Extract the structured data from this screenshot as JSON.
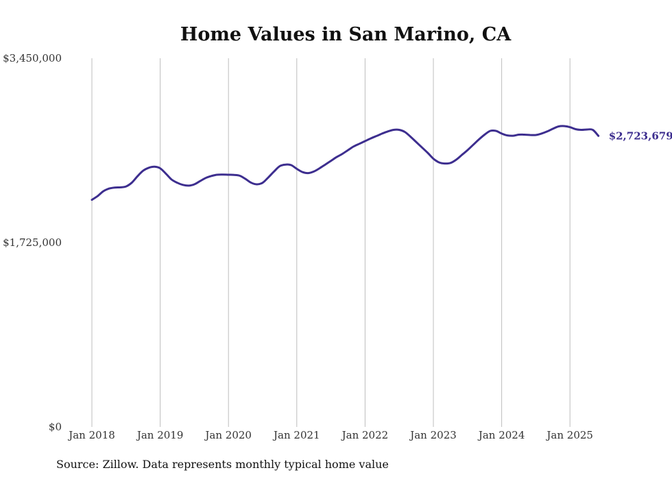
{
  "chart_data": {
    "type": "line",
    "title": "Home Values in San Marino, CA",
    "xlabel": "",
    "ylabel": "",
    "ylim": [
      0,
      3450000
    ],
    "y_ticks": [
      "$0",
      "$1,725,000",
      "$3,450,000"
    ],
    "y_tick_values": [
      0,
      1725000,
      3450000
    ],
    "x_ticks": [
      "Jan 2018",
      "Jan 2019",
      "Jan 2020",
      "Jan 2021",
      "Jan 2022",
      "Jan 2023",
      "Jan 2024",
      "Jan 2025"
    ],
    "xlim": [
      "2018-01",
      "2025-06"
    ],
    "grid": "vertical",
    "line_color": "#3d2e8f",
    "end_label": "$2,723,679",
    "series": [
      {
        "x": [
          "2018-01",
          "2018-02",
          "2018-03",
          "2018-04",
          "2018-05",
          "2018-06",
          "2018-07",
          "2018-08",
          "2018-09",
          "2018-10",
          "2018-11",
          "2018-12",
          "2019-01",
          "2019-02",
          "2019-03",
          "2019-04",
          "2019-05",
          "2019-06",
          "2019-07",
          "2019-08",
          "2019-09",
          "2019-10",
          "2019-11",
          "2019-12",
          "2020-01",
          "2020-02",
          "2020-03",
          "2020-04",
          "2020-05",
          "2020-06",
          "2020-07",
          "2020-08",
          "2020-09",
          "2020-10",
          "2020-11",
          "2020-12",
          "2021-01",
          "2021-02",
          "2021-03",
          "2021-04",
          "2021-05",
          "2021-06",
          "2021-07",
          "2021-08",
          "2021-09",
          "2021-10",
          "2021-11",
          "2021-12",
          "2022-01",
          "2022-02",
          "2022-03",
          "2022-04",
          "2022-05",
          "2022-06",
          "2022-07",
          "2022-08",
          "2022-09",
          "2022-10",
          "2022-11",
          "2022-12",
          "2023-01",
          "2023-02",
          "2023-03",
          "2023-04",
          "2023-05",
          "2023-06",
          "2023-07",
          "2023-08",
          "2023-09",
          "2023-10",
          "2023-11",
          "2023-12",
          "2024-01",
          "2024-02",
          "2024-03",
          "2024-04",
          "2024-05",
          "2024-06",
          "2024-07",
          "2024-08",
          "2024-09",
          "2024-10",
          "2024-11",
          "2024-12",
          "2025-01",
          "2025-02",
          "2025-03",
          "2025-04",
          "2025-05",
          "2025-06"
        ],
        "values": [
          2125000,
          2160000,
          2205000,
          2230000,
          2240000,
          2242000,
          2250000,
          2285000,
          2345000,
          2398000,
          2425000,
          2435000,
          2420000,
          2370000,
          2315000,
          2285000,
          2265000,
          2258000,
          2270000,
          2300000,
          2330000,
          2348000,
          2360000,
          2362000,
          2360000,
          2358000,
          2350000,
          2320000,
          2285000,
          2270000,
          2285000,
          2335000,
          2390000,
          2440000,
          2455000,
          2450000,
          2415000,
          2385000,
          2375000,
          2390000,
          2420000,
          2455000,
          2490000,
          2525000,
          2555000,
          2590000,
          2625000,
          2650000,
          2675000,
          2700000,
          2722000,
          2745000,
          2765000,
          2780000,
          2780000,
          2760000,
          2715000,
          2665000,
          2615000,
          2565000,
          2510000,
          2475000,
          2465000,
          2470000,
          2500000,
          2545000,
          2590000,
          2640000,
          2690000,
          2735000,
          2770000,
          2770000,
          2745000,
          2728000,
          2725000,
          2735000,
          2735000,
          2732000,
          2732000,
          2745000,
          2765000,
          2790000,
          2812000,
          2815000,
          2805000,
          2786000,
          2780000,
          2783000,
          2780000,
          2723679
        ]
      }
    ]
  },
  "source_text": "Source: Zillow. Data represents monthly typical home value"
}
